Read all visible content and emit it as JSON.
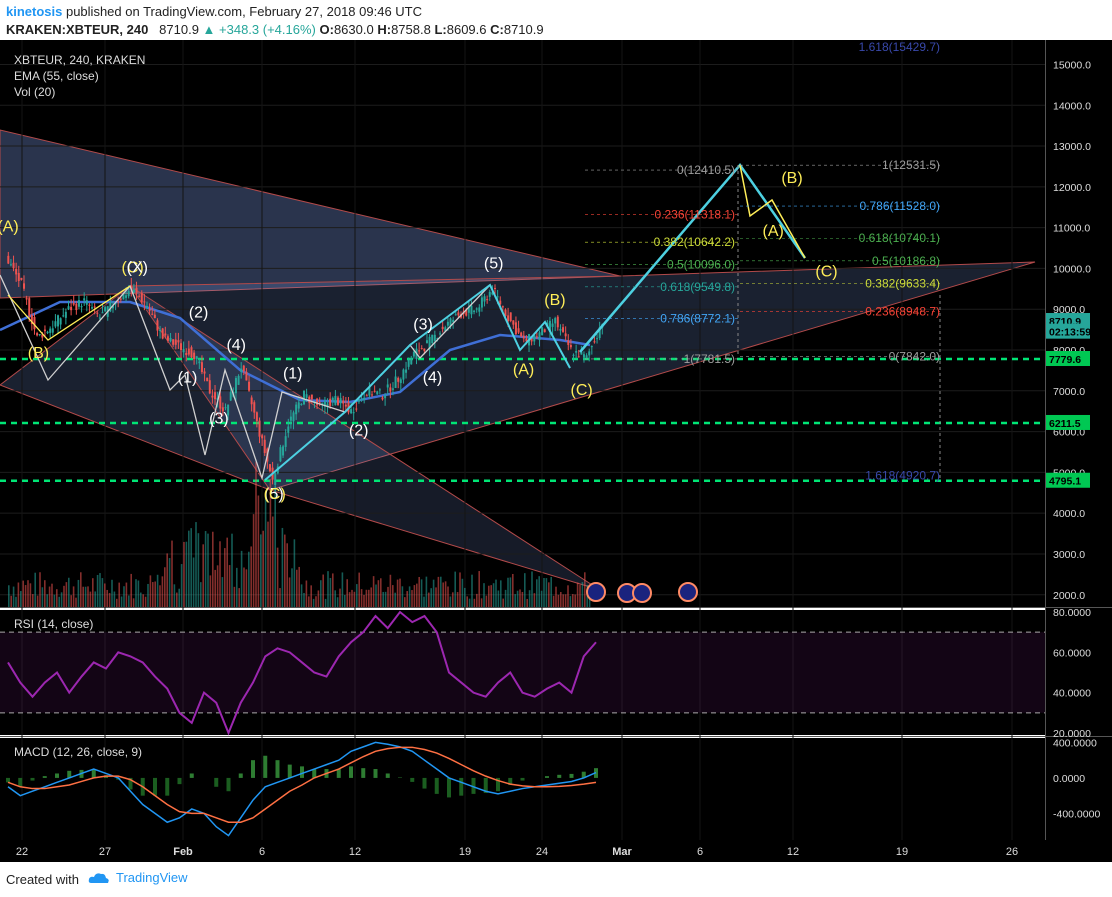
{
  "header": {
    "author": "kinetosis",
    "published": " published on TradingView.com, February 27, 2018 09:46 UTC",
    "symbol": "KRAKEN:XBTEUR, 240",
    "last": "8710.9",
    "change": "▲ +348.3 (+4.16%)",
    "o_label": "O:",
    "o": "8630.0",
    "h_label": "H:",
    "h": "8758.8",
    "l_label": "L:",
    "l": "8609.6",
    "c_label": "C:",
    "c": "8710.9"
  },
  "footer": {
    "created_with": "Created with",
    "brand": "TradingView",
    "brand_icon": "tradingview-cloud-icon"
  },
  "colors": {
    "bg": "#000000",
    "up": "#26a69a",
    "down": "#ef5350",
    "fib": "#2196f3",
    "level": "#00e676",
    "rsi": "#9c27b0",
    "wave": "#4dd0e1",
    "yellow": "#ffee58"
  },
  "chart_data": [
    {
      "type": "candlestick",
      "title": "XBTEUR, 240, KRAKEN",
      "indicators": [
        "EMA (55, close)",
        "Vol (20)"
      ],
      "x_ticks": [
        "22",
        "27",
        "Feb",
        "6",
        "12",
        "19",
        "24",
        "Mar",
        "6",
        "12",
        "19",
        "26"
      ],
      "y_ticks": [
        "15000.0",
        "14000.0",
        "13000.0",
        "12000.0",
        "11000.0",
        "10000.0",
        "9000.0",
        "8000.0",
        "7000.0",
        "6000.0",
        "5000.0",
        "4000.0",
        "3000.0",
        "2000.0"
      ],
      "ylim": [
        1700,
        15600
      ],
      "price_path": [
        {
          "d": "Jan 20",
          "p": 10300
        },
        {
          "d": "Jan 21",
          "p": 9600
        },
        {
          "d": "Jan 22",
          "p": 8300
        },
        {
          "d": "Jan 23",
          "p": 8600
        },
        {
          "d": "Jan 24",
          "p": 9000
        },
        {
          "d": "Jan 25",
          "p": 9200
        },
        {
          "d": "Jan 26",
          "p": 8800
        },
        {
          "d": "Jan 27",
          "p": 9200
        },
        {
          "d": "Jan 28",
          "p": 9500
        },
        {
          "d": "Jan 29",
          "p": 9100
        },
        {
          "d": "Jan 30",
          "p": 8300
        },
        {
          "d": "Jan 31",
          "p": 8100
        },
        {
          "d": "Feb 1",
          "p": 7900
        },
        {
          "d": "Feb 2",
          "p": 7000
        },
        {
          "d": "Feb 3",
          "p": 6500
        },
        {
          "d": "Feb 4",
          "p": 7600
        },
        {
          "d": "Feb 5",
          "p": 6200
        },
        {
          "d": "Feb 6",
          "p": 4800
        },
        {
          "d": "Feb 7",
          "p": 6200
        },
        {
          "d": "Feb 8",
          "p": 6900
        },
        {
          "d": "Feb 9",
          "p": 6600
        },
        {
          "d": "Feb 10",
          "p": 6800
        },
        {
          "d": "Feb 11",
          "p": 6500
        },
        {
          "d": "Feb 12",
          "p": 7000
        },
        {
          "d": "Feb 13",
          "p": 6900
        },
        {
          "d": "Feb 14",
          "p": 7300
        },
        {
          "d": "Feb 15",
          "p": 7900
        },
        {
          "d": "Feb 16",
          "p": 8200
        },
        {
          "d": "Feb 17",
          "p": 8600
        },
        {
          "d": "Feb 18",
          "p": 8900
        },
        {
          "d": "Feb 19",
          "p": 9000
        },
        {
          "d": "Feb 20",
          "p": 9500
        },
        {
          "d": "Feb 21",
          "p": 8800
        },
        {
          "d": "Feb 22",
          "p": 8200
        },
        {
          "d": "Feb 23",
          "p": 8400
        },
        {
          "d": "Feb 24",
          "p": 8700
        },
        {
          "d": "Feb 25",
          "p": 8000
        },
        {
          "d": "Feb 26",
          "p": 7800
        },
        {
          "d": "Feb 27",
          "p": 8710
        }
      ],
      "price_labels": [
        {
          "text": "8710.9",
          "value": 8710.9,
          "color": "#26a69a"
        },
        {
          "text": "02:13:59",
          "value": 8450,
          "color": "#26a69a"
        },
        {
          "text": "7779.6",
          "value": 7779.6,
          "color": "#00c853"
        },
        {
          "text": "6211.5",
          "value": 6211.5,
          "color": "#00c853"
        },
        {
          "text": "4795.1",
          "value": 4795.1,
          "color": "#00c853"
        }
      ],
      "horizontal_levels": [
        7779.6,
        6211.5,
        4795.1
      ],
      "projection": [
        {
          "d": "Feb 27",
          "p": 8700
        },
        {
          "d": "Mar 9",
          "p": 12410
        },
        {
          "d": "Mar 10",
          "p": 11300
        },
        {
          "d": "Mar 11",
          "p": 11650
        },
        {
          "d": "Mar 13",
          "p": 10250
        }
      ],
      "fib_levels_1": [
        {
          "text": "0(12410.5)",
          "value": 12410.5,
          "color": "#9e9e9e"
        },
        {
          "text": "0.236(11318.1)",
          "value": 11318.1,
          "color": "#f44336"
        },
        {
          "text": "0.382(10642.2)",
          "value": 10642.2,
          "color": "#cddc39"
        },
        {
          "text": "0.5(10096.0)",
          "value": 10096.0,
          "color": "#4caf50"
        },
        {
          "text": "0.618(9549.8)",
          "value": 9549.8,
          "color": "#26a69a"
        },
        {
          "text": "0.786(8772.1)",
          "value": 8772.1,
          "color": "#42a5f5"
        },
        {
          "text": "1(7781.5)",
          "value": 7781.5,
          "color": "#9e9e9e"
        }
      ],
      "fib_levels_2": [
        {
          "text": "1(12531.5)",
          "value": 12531.5,
          "color": "#9e9e9e"
        },
        {
          "text": "0.786(11528.0)",
          "value": 11528.0,
          "color": "#42a5f5"
        },
        {
          "text": "0.618(10740.1)",
          "value": 10740.1,
          "color": "#4caf50"
        },
        {
          "text": "0.5(10186.8)",
          "value": 10186.8,
          "color": "#4caf50"
        },
        {
          "text": "0.382(9633.4)",
          "value": 9633.4,
          "color": "#cddc39"
        },
        {
          "text": "0.236(8948.7)",
          "value": 8948.7,
          "color": "#f44336"
        },
        {
          "text": "0(7842.0)",
          "value": 7842.0,
          "color": "#9e9e9e"
        }
      ],
      "fib_ext_labels": [
        {
          "text": "1.618(15429.7)",
          "value": 15429.7
        },
        {
          "text": "1.618(4920.7)",
          "value": 4920.7
        }
      ],
      "wave_labels": [
        {
          "text": "(A)",
          "d": "Jan 20",
          "p": 10900,
          "color": "#ffee58"
        },
        {
          "text": "(B)",
          "d": "Jan 22",
          "p": 7800,
          "color": "#ffee58"
        },
        {
          "text": "(C)",
          "d": "Jan 28",
          "p": 9900,
          "color": "#ffee58"
        },
        {
          "text": "(X)",
          "d": "Jan 28.3",
          "p": 9900,
          "color": "#ffffff"
        },
        {
          "text": "(1)",
          "d": "Jan 31.5",
          "p": 7200,
          "color": "#ffffff"
        },
        {
          "text": "(2)",
          "d": "Feb 1.2",
          "p": 8800,
          "color": "#ffffff"
        },
        {
          "text": "(3)",
          "d": "Feb 2.5",
          "p": 6200,
          "color": "#ffffff"
        },
        {
          "text": "(4)",
          "d": "Feb 3.6",
          "p": 8000,
          "color": "#ffffff"
        },
        {
          "text": "(5)",
          "d": "Feb 6",
          "p": 4350,
          "color": "#ffffff"
        },
        {
          "text": "(C)",
          "d": "Feb 6.05",
          "p": 4350,
          "color": "#ffee58"
        },
        {
          "text": "(1)",
          "d": "Feb 7.2",
          "p": 7300,
          "color": "#ffffff"
        },
        {
          "text": "(2)",
          "d": "Feb 11.4",
          "p": 5900,
          "color": "#ffffff"
        },
        {
          "text": "(3)",
          "d": "Feb 15.5",
          "p": 8500,
          "color": "#ffffff"
        },
        {
          "text": "(4)",
          "d": "Feb 16.1",
          "p": 7200,
          "color": "#ffffff"
        },
        {
          "text": "(5)",
          "d": "Feb 20",
          "p": 10000,
          "color": "#ffffff"
        },
        {
          "text": "(A)",
          "d": "Feb 21.9",
          "p": 7400,
          "color": "#ffee58"
        },
        {
          "text": "(B)",
          "d": "Feb 23.9",
          "p": 9100,
          "color": "#ffee58"
        },
        {
          "text": "(C)",
          "d": "Feb 25.6",
          "p": 6900,
          "color": "#ffee58"
        },
        {
          "text": "(A)",
          "d": "Mar 9.8",
          "p": 10800,
          "color": "#ffee58"
        },
        {
          "text": "(B)",
          "d": "Mar 11",
          "p": 12100,
          "color": "#ffee58"
        },
        {
          "text": "(C)",
          "d": "Mar 13.2",
          "p": 9800,
          "color": "#ffee58"
        }
      ]
    },
    {
      "type": "line",
      "title": "RSI (14, close)",
      "y_ticks": [
        "80.0000",
        "60.0000",
        "40.0000",
        "20.0000"
      ],
      "ylim": [
        19,
        81
      ],
      "bands": [
        70,
        30
      ],
      "values": [
        55,
        45,
        38,
        45,
        50,
        40,
        48,
        55,
        52,
        60,
        58,
        55,
        48,
        42,
        30,
        25,
        40,
        35,
        20,
        35,
        45,
        58,
        62,
        60,
        55,
        50,
        48,
        58,
        65,
        70,
        78,
        72,
        80,
        75,
        78,
        70,
        50,
        45,
        40,
        38,
        45,
        50,
        40,
        38,
        42,
        45,
        40,
        58,
        65
      ]
    },
    {
      "type": "line",
      "title": "MACD (12, 26, close, 9)",
      "y_ticks": [
        "400.0000",
        "0.0000",
        "-400.0000"
      ],
      "ylim": [
        -700,
        450
      ],
      "macd": [
        -100,
        -200,
        -150,
        -100,
        -50,
        0,
        50,
        100,
        50,
        0,
        -150,
        -300,
        -400,
        -500,
        -450,
        -350,
        -400,
        -550,
        -650,
        -450,
        -250,
        -100,
        -50,
        0,
        50,
        100,
        150,
        200,
        300,
        350,
        400,
        380,
        350,
        300,
        200,
        100,
        0,
        -50,
        -100,
        -150,
        -180,
        -150,
        -120,
        -100,
        -80,
        -60,
        -40,
        0,
        60
      ],
      "signal": [
        -50,
        -100,
        -120,
        -120,
        -100,
        -80,
        -40,
        0,
        20,
        20,
        -20,
        -100,
        -200,
        -300,
        -380,
        -400,
        -400,
        -450,
        -500,
        -500,
        -450,
        -350,
        -250,
        -150,
        -80,
        0,
        50,
        100,
        170,
        240,
        300,
        330,
        345,
        345,
        320,
        280,
        220,
        150,
        80,
        20,
        -30,
        -70,
        -90,
        -100,
        -100,
        -95,
        -85,
        -70,
        -50
      ]
    }
  ]
}
